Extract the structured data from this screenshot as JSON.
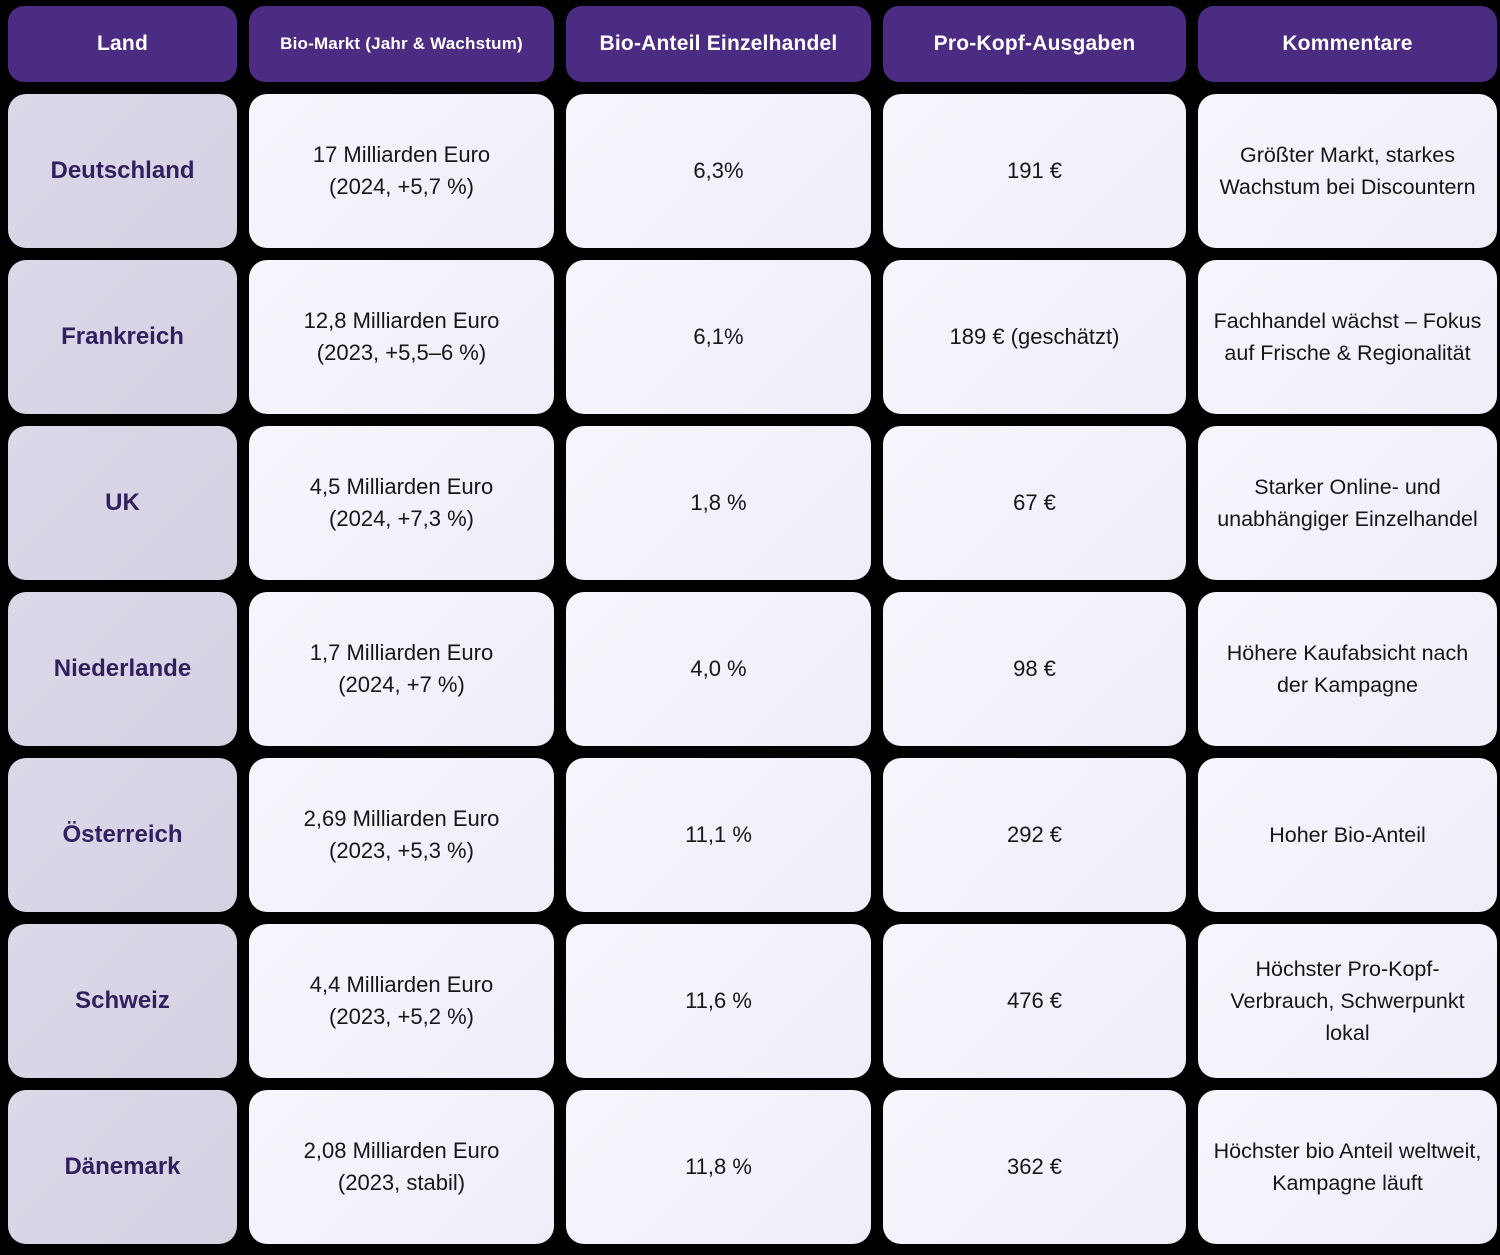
{
  "table": {
    "columns": {
      "land": "Land",
      "bio_markt": "Bio-Markt (Jahr & Wachstum)",
      "bio_anteil": "Bio-Anteil Einzelhandel",
      "pro_kopf": "Pro-Kopf-Ausgaben",
      "kommentare": "Kommentare"
    },
    "rows": [
      {
        "land": "Deutschland",
        "markt_value": "17 Milliarden Euro",
        "markt_detail": "(2024, +5,7 %)",
        "anteil": "6,3%",
        "pro_kopf": "191 €",
        "kommentar": "Größter Markt, starkes Wachstum bei Discountern"
      },
      {
        "land": "Frankreich",
        "markt_value": "12,8 Milliarden Euro",
        "markt_detail": "(2023, +5,5–6 %)",
        "anteil": "6,1%",
        "pro_kopf": "189 € (geschätzt)",
        "kommentar": "Fachhandel wächst – Fokus auf Frische & Regionalität"
      },
      {
        "land": "UK",
        "markt_value": "4,5 Milliarden Euro",
        "markt_detail": "(2024, +7,3 %)",
        "anteil": "1,8 %",
        "pro_kopf": "67 €",
        "kommentar": "Starker Online- und unabhängiger Einzelhandel"
      },
      {
        "land": "Niederlande",
        "markt_value": "1,7 Milliarden Euro",
        "markt_detail": "(2024, +7 %)",
        "anteil": "4,0 %",
        "pro_kopf": "98 €",
        "kommentar": "Höhere Kaufabsicht nach der Kampagne"
      },
      {
        "land": "Österreich",
        "markt_value": "2,69 Milliarden Euro",
        "markt_detail": "(2023, +5,3 %)",
        "anteil": "11,1 %",
        "pro_kopf": "292 €",
        "kommentar": "Hoher Bio-Anteil"
      },
      {
        "land": "Schweiz",
        "markt_value": "4,4 Milliarden Euro",
        "markt_detail": "(2023, +5,2 %)",
        "anteil": "11,6 %",
        "pro_kopf": "476 €",
        "kommentar": "Höchster Pro-Kopf-Verbrauch, Schwerpunkt lokal"
      },
      {
        "land": "Dänemark",
        "markt_value": "2,08 Milliarden Euro",
        "markt_detail": "(2023, stabil)",
        "anteil": "11,8 %",
        "pro_kopf": "362 €",
        "kommentar": "Höchster bio Anteil weltweit, Kampagne läuft"
      }
    ]
  },
  "colors": {
    "header_bg": "#4b2c82",
    "header_text": "#ffffff",
    "land_cell_bg": "#d9d4e5",
    "data_cell_bg": "#f5f3fa",
    "land_text": "#31205f",
    "body_text": "#161616",
    "page_bg": "#000000"
  }
}
